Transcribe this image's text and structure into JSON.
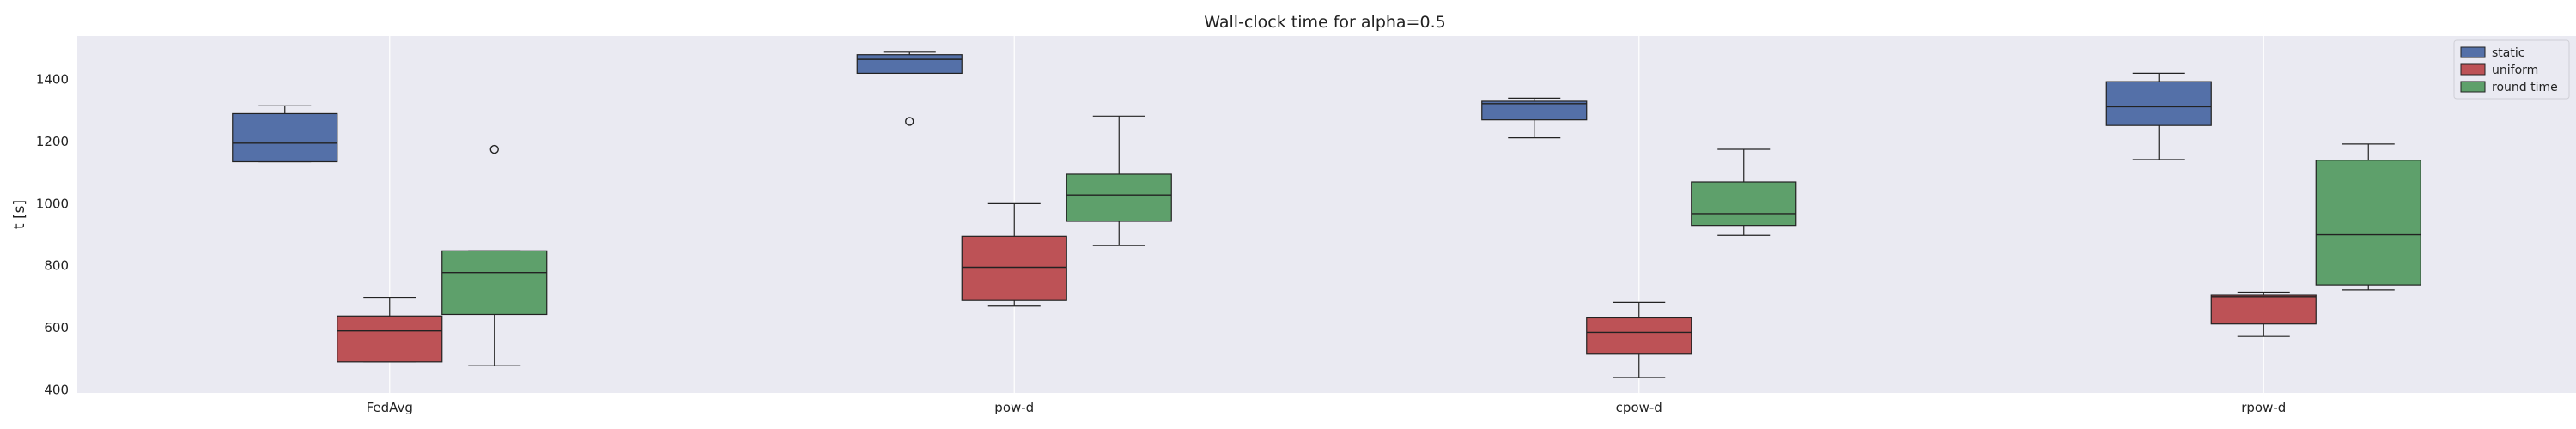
{
  "chart_data": {
    "type": "box",
    "title": "Wall-clock time for alpha=0.5",
    "xlabel": "",
    "ylabel": "t [s]",
    "ylim": [
      390,
      1540
    ],
    "yticks": [
      400,
      600,
      800,
      1000,
      1200,
      1400
    ],
    "categories": [
      "FedAvg",
      "pow-d",
      "cpow-d",
      "rpow-d"
    ],
    "grid": true,
    "legend_position": "top-right",
    "series": [
      {
        "name": "static",
        "color": "#5470a8",
        "boxes": [
          {
            "whislo": 1135,
            "q1": 1135,
            "med": 1195,
            "q3": 1290,
            "whishi": 1315,
            "fliers": []
          },
          {
            "whislo": 1420,
            "q1": 1420,
            "med": 1465,
            "q3": 1480,
            "whishi": 1488,
            "fliers": [
              1265
            ]
          },
          {
            "whislo": 1212,
            "q1": 1270,
            "med": 1322,
            "q3": 1330,
            "whishi": 1340,
            "fliers": []
          },
          {
            "whislo": 1142,
            "q1": 1252,
            "med": 1312,
            "q3": 1393,
            "whishi": 1420,
            "fliers": []
          }
        ]
      },
      {
        "name": "uniform",
        "color": "#bd5256",
        "boxes": [
          {
            "whislo": 490,
            "q1": 490,
            "med": 590,
            "q3": 638,
            "whishi": 698,
            "fliers": []
          },
          {
            "whislo": 670,
            "q1": 688,
            "med": 795,
            "q3": 895,
            "whishi": 1000,
            "fliers": []
          },
          {
            "whislo": 440,
            "q1": 515,
            "med": 585,
            "q3": 632,
            "whishi": 682,
            "fliers": []
          },
          {
            "whislo": 572,
            "q1": 612,
            "med": 700,
            "q3": 705,
            "whishi": 715,
            "fliers": []
          }
        ]
      },
      {
        "name": "round time",
        "color": "#5ea06b",
        "boxes": [
          {
            "whislo": 478,
            "q1": 643,
            "med": 778,
            "q3": 848,
            "whishi": 848,
            "fliers": [
              1175
            ]
          },
          {
            "whislo": 865,
            "q1": 943,
            "med": 1028,
            "q3": 1095,
            "whishi": 1282,
            "fliers": []
          },
          {
            "whislo": 898,
            "q1": 930,
            "med": 968,
            "q3": 1070,
            "whishi": 1175,
            "fliers": []
          },
          {
            "whislo": 722,
            "q1": 738,
            "med": 900,
            "q3": 1140,
            "whishi": 1192,
            "fliers": []
          }
        ]
      }
    ]
  }
}
